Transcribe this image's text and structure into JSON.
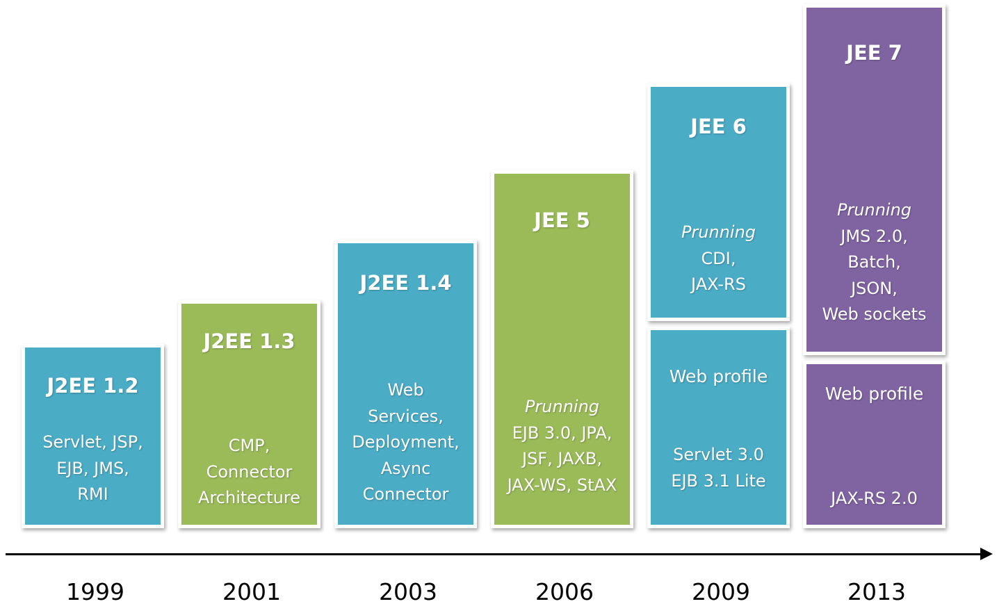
{
  "versions": [
    {
      "title": "J2EE 1.2",
      "features": [
        "Servlet, JSP,",
        "EJB, JMS,",
        "RMI"
      ]
    },
    {
      "title": "J2EE 1.3",
      "features": [
        "CMP,",
        "Connector",
        "Architecture"
      ]
    },
    {
      "title": "J2EE 1.4",
      "features": [
        "Web",
        "Services,",
        "Deployment,",
        "Async",
        "Connector"
      ]
    },
    {
      "title": "JEE 5",
      "emphasis": "Prunning",
      "features": [
        "EJB 3.0, JPA,",
        "JSF, JAXB,",
        "JAX-WS, StAX"
      ]
    },
    {
      "title": "JEE 6",
      "emphasis": "Prunning",
      "features": [
        "CDI,",
        "JAX-RS"
      ],
      "profile": {
        "label": "Web profile",
        "features": [
          "Servlet 3.0",
          "EJB 3.1 Lite"
        ]
      }
    },
    {
      "title": "JEE 7",
      "emphasis": "Prunning",
      "features": [
        "JMS 2.0,",
        "Batch,",
        "JSON,",
        "Web sockets"
      ],
      "profile": {
        "label": "Web profile",
        "features": [
          "JAX-RS 2.0"
        ]
      }
    }
  ],
  "years": [
    "1999",
    "2001",
    "2003",
    "2006",
    "2009",
    "2013"
  ],
  "colors": {
    "blue": "#4bacc6",
    "green": "#9bbb59",
    "purple": "#8064a2",
    "axis": "#000000"
  }
}
